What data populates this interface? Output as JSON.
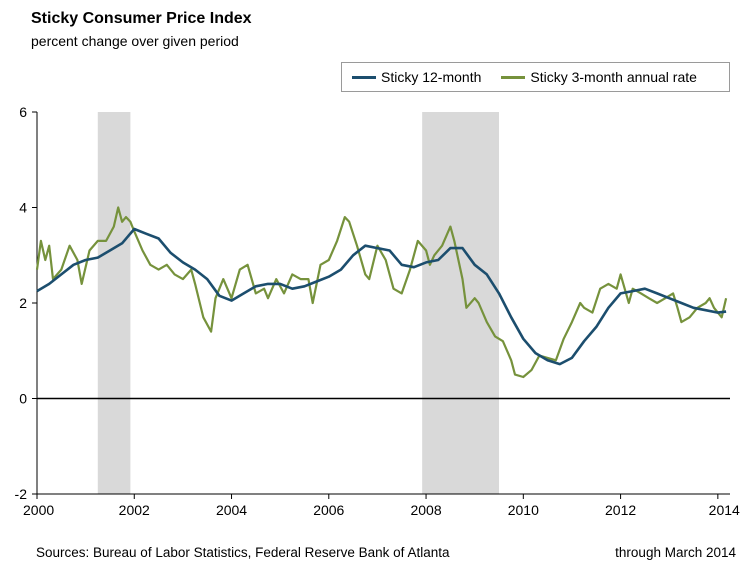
{
  "title": "Sticky Consumer Price Index",
  "subtitle": "percent change over given period",
  "source": "Sources: Bureau of Labor Statistics, Federal Reserve Bank of Atlanta",
  "through": "through March 2014",
  "legend": [
    {
      "name": "Sticky 12-month",
      "color": "#1c4e6e"
    },
    {
      "name": "Sticky 3-month annual rate",
      "color": "#76923c"
    }
  ],
  "chart_data": {
    "type": "line",
    "title": "Sticky Consumer Price Index",
    "subtitle": "percent change over given period",
    "xlim": [
      2000,
      2014.25
    ],
    "ylim": [
      -2,
      6
    ],
    "x_ticks": [
      "2000",
      "2002",
      "2004",
      "2006",
      "2008",
      "2010",
      "2012",
      "2014"
    ],
    "y_ticks": [
      "-2",
      "0",
      "2",
      "4",
      "6"
    ],
    "grid": false,
    "legend_position": "top-right",
    "recessions": [
      [
        2001.25,
        2001.92
      ],
      [
        2007.92,
        2009.5
      ]
    ],
    "series": [
      {
        "name": "Sticky 12-month",
        "color": "#1c4e6e",
        "points": [
          [
            2000.0,
            2.25
          ],
          [
            2000.25,
            2.4
          ],
          [
            2000.5,
            2.6
          ],
          [
            2000.75,
            2.8
          ],
          [
            2001.0,
            2.9
          ],
          [
            2001.25,
            2.95
          ],
          [
            2001.5,
            3.1
          ],
          [
            2001.75,
            3.25
          ],
          [
            2002.0,
            3.55
          ],
          [
            2002.25,
            3.45
          ],
          [
            2002.5,
            3.35
          ],
          [
            2002.75,
            3.05
          ],
          [
            2003.0,
            2.85
          ],
          [
            2003.25,
            2.7
          ],
          [
            2003.5,
            2.5
          ],
          [
            2003.75,
            2.15
          ],
          [
            2004.0,
            2.05
          ],
          [
            2004.25,
            2.2
          ],
          [
            2004.5,
            2.35
          ],
          [
            2004.75,
            2.4
          ],
          [
            2005.0,
            2.4
          ],
          [
            2005.25,
            2.3
          ],
          [
            2005.5,
            2.35
          ],
          [
            2005.75,
            2.45
          ],
          [
            2006.0,
            2.55
          ],
          [
            2006.25,
            2.7
          ],
          [
            2006.5,
            3.0
          ],
          [
            2006.75,
            3.2
          ],
          [
            2007.0,
            3.15
          ],
          [
            2007.25,
            3.1
          ],
          [
            2007.5,
            2.8
          ],
          [
            2007.75,
            2.75
          ],
          [
            2008.0,
            2.85
          ],
          [
            2008.25,
            2.9
          ],
          [
            2008.5,
            3.15
          ],
          [
            2008.75,
            3.15
          ],
          [
            2009.0,
            2.8
          ],
          [
            2009.25,
            2.6
          ],
          [
            2009.5,
            2.2
          ],
          [
            2009.75,
            1.7
          ],
          [
            2010.0,
            1.25
          ],
          [
            2010.25,
            0.95
          ],
          [
            2010.5,
            0.8
          ],
          [
            2010.75,
            0.72
          ],
          [
            2011.0,
            0.85
          ],
          [
            2011.25,
            1.2
          ],
          [
            2011.5,
            1.5
          ],
          [
            2011.75,
            1.9
          ],
          [
            2012.0,
            2.2
          ],
          [
            2012.25,
            2.25
          ],
          [
            2012.5,
            2.3
          ],
          [
            2012.75,
            2.2
          ],
          [
            2013.0,
            2.1
          ],
          [
            2013.25,
            2.0
          ],
          [
            2013.5,
            1.9
          ],
          [
            2013.75,
            1.85
          ],
          [
            2014.0,
            1.8
          ],
          [
            2014.17,
            1.82
          ]
        ]
      },
      {
        "name": "Sticky 3-month annual rate",
        "color": "#76923c",
        "points": [
          [
            2000.0,
            2.7
          ],
          [
            2000.08,
            3.3
          ],
          [
            2000.17,
            2.9
          ],
          [
            2000.25,
            3.2
          ],
          [
            2000.33,
            2.5
          ],
          [
            2000.5,
            2.7
          ],
          [
            2000.67,
            3.2
          ],
          [
            2000.83,
            2.9
          ],
          [
            2000.92,
            2.4
          ],
          [
            2001.08,
            3.1
          ],
          [
            2001.25,
            3.3
          ],
          [
            2001.42,
            3.3
          ],
          [
            2001.58,
            3.6
          ],
          [
            2001.67,
            4.0
          ],
          [
            2001.75,
            3.7
          ],
          [
            2001.83,
            3.8
          ],
          [
            2001.92,
            3.7
          ],
          [
            2002.0,
            3.5
          ],
          [
            2002.17,
            3.1
          ],
          [
            2002.33,
            2.8
          ],
          [
            2002.5,
            2.7
          ],
          [
            2002.67,
            2.8
          ],
          [
            2002.83,
            2.6
          ],
          [
            2003.0,
            2.5
          ],
          [
            2003.17,
            2.7
          ],
          [
            2003.25,
            2.4
          ],
          [
            2003.42,
            1.7
          ],
          [
            2003.58,
            1.4
          ],
          [
            2003.67,
            2.1
          ],
          [
            2003.83,
            2.5
          ],
          [
            2004.0,
            2.1
          ],
          [
            2004.17,
            2.7
          ],
          [
            2004.33,
            2.8
          ],
          [
            2004.5,
            2.2
          ],
          [
            2004.67,
            2.3
          ],
          [
            2004.75,
            2.1
          ],
          [
            2004.92,
            2.5
          ],
          [
            2005.08,
            2.2
          ],
          [
            2005.25,
            2.6
          ],
          [
            2005.42,
            2.5
          ],
          [
            2005.58,
            2.5
          ],
          [
            2005.67,
            2.0
          ],
          [
            2005.83,
            2.8
          ],
          [
            2006.0,
            2.9
          ],
          [
            2006.17,
            3.3
          ],
          [
            2006.33,
            3.8
          ],
          [
            2006.42,
            3.7
          ],
          [
            2006.58,
            3.2
          ],
          [
            2006.75,
            2.6
          ],
          [
            2006.83,
            2.5
          ],
          [
            2007.0,
            3.2
          ],
          [
            2007.17,
            2.9
          ],
          [
            2007.33,
            2.3
          ],
          [
            2007.5,
            2.2
          ],
          [
            2007.67,
            2.7
          ],
          [
            2007.83,
            3.3
          ],
          [
            2008.0,
            3.1
          ],
          [
            2008.08,
            2.8
          ],
          [
            2008.17,
            3.0
          ],
          [
            2008.33,
            3.2
          ],
          [
            2008.5,
            3.6
          ],
          [
            2008.58,
            3.3
          ],
          [
            2008.75,
            2.5
          ],
          [
            2008.83,
            1.9
          ],
          [
            2009.0,
            2.1
          ],
          [
            2009.08,
            2.0
          ],
          [
            2009.25,
            1.6
          ],
          [
            2009.42,
            1.3
          ],
          [
            2009.58,
            1.2
          ],
          [
            2009.75,
            0.8
          ],
          [
            2009.83,
            0.5
          ],
          [
            2010.0,
            0.45
          ],
          [
            2010.17,
            0.6
          ],
          [
            2010.33,
            0.9
          ],
          [
            2010.5,
            0.85
          ],
          [
            2010.67,
            0.8
          ],
          [
            2010.83,
            1.25
          ],
          [
            2011.0,
            1.6
          ],
          [
            2011.17,
            2.0
          ],
          [
            2011.25,
            1.9
          ],
          [
            2011.42,
            1.8
          ],
          [
            2011.58,
            2.3
          ],
          [
            2011.75,
            2.4
          ],
          [
            2011.92,
            2.3
          ],
          [
            2012.0,
            2.6
          ],
          [
            2012.17,
            2.0
          ],
          [
            2012.25,
            2.3
          ],
          [
            2012.42,
            2.2
          ],
          [
            2012.58,
            2.1
          ],
          [
            2012.75,
            2.0
          ],
          [
            2012.92,
            2.1
          ],
          [
            2013.08,
            2.2
          ],
          [
            2013.17,
            1.9
          ],
          [
            2013.25,
            1.6
          ],
          [
            2013.42,
            1.7
          ],
          [
            2013.58,
            1.9
          ],
          [
            2013.75,
            2.0
          ],
          [
            2013.83,
            2.1
          ],
          [
            2013.92,
            1.9
          ],
          [
            2014.08,
            1.7
          ],
          [
            2014.17,
            2.1
          ]
        ]
      }
    ]
  }
}
